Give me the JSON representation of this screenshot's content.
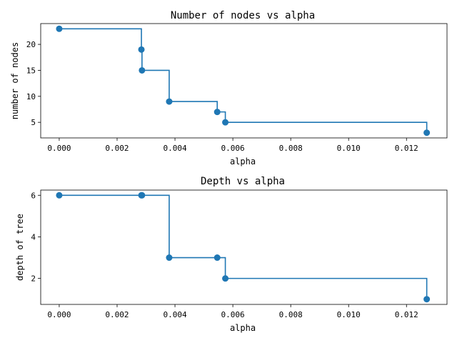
{
  "chart_data": [
    {
      "type": "line",
      "drawstyle": "steps-post",
      "marker": "circle",
      "color": "#1f77b4",
      "title": "Number of nodes vs alpha",
      "xlabel": "alpha",
      "ylabel": "number of nodes",
      "xlim": [
        -0.00064,
        0.0134
      ],
      "ylim": [
        2.0,
        24.0
      ],
      "xticks": [
        0.0,
        0.002,
        0.004,
        0.006,
        0.008,
        0.01,
        0.012
      ],
      "xticklabels": [
        "0.000",
        "0.002",
        "0.004",
        "0.006",
        "0.008",
        "0.010",
        "0.012"
      ],
      "yticks": [
        5,
        10,
        15,
        20
      ],
      "yticklabels": [
        "5",
        "10",
        "15",
        "20"
      ],
      "grid": false,
      "series": [
        {
          "x": [
            0.0,
            0.00284,
            0.00286,
            0.0038,
            0.00546,
            0.00574,
            0.0127
          ],
          "y": [
            23,
            19,
            15,
            9,
            7,
            5,
            3
          ]
        }
      ]
    },
    {
      "type": "line",
      "drawstyle": "steps-post",
      "marker": "circle",
      "color": "#1f77b4",
      "title": "Depth vs alpha",
      "xlabel": "alpha",
      "ylabel": "depth of tree",
      "xlim": [
        -0.00064,
        0.0134
      ],
      "ylim": [
        0.75,
        6.25
      ],
      "xticks": [
        0.0,
        0.002,
        0.004,
        0.006,
        0.008,
        0.01,
        0.012
      ],
      "xticklabels": [
        "0.000",
        "0.002",
        "0.004",
        "0.006",
        "0.008",
        "0.010",
        "0.012"
      ],
      "yticks": [
        2,
        4,
        6
      ],
      "yticklabels": [
        "2",
        "4",
        "6"
      ],
      "grid": false,
      "series": [
        {
          "x": [
            0.0,
            0.00284,
            0.00286,
            0.0038,
            0.00546,
            0.00574,
            0.0127
          ],
          "y": [
            6,
            6,
            6,
            3,
            3,
            2,
            1
          ]
        }
      ]
    }
  ]
}
